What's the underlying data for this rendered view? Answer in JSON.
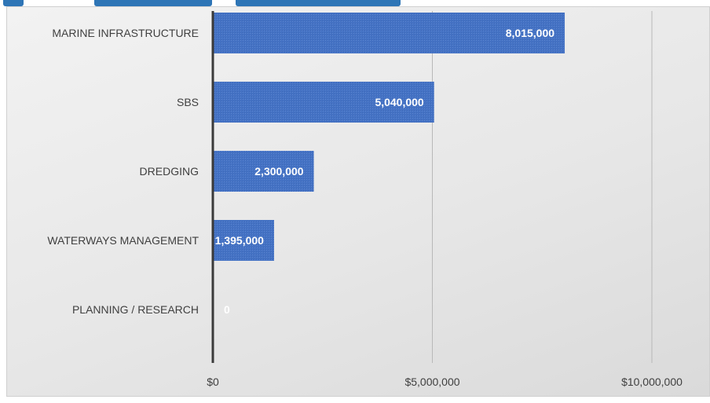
{
  "chart_data": {
    "type": "bar",
    "orientation": "horizontal",
    "categories": [
      "MARINE INFRASTRUCTURE",
      "SBS",
      "DREDGING",
      "WATERWAYS MANAGEMENT",
      "PLANNING / RESEARCH"
    ],
    "values": [
      8015000,
      5040000,
      2300000,
      1395000,
      0
    ],
    "data_labels": [
      "8,015,000",
      "5,040,000",
      "2,300,000",
      "1,395,000",
      "0"
    ],
    "xlim": [
      0,
      10000000
    ],
    "x_ticks": [
      0,
      5000000,
      10000000
    ],
    "x_tick_labels": [
      "$0",
      "$5,000,000",
      "$10,000,000"
    ],
    "gridlines": true,
    "legend": "none",
    "colors": {
      "bar": "#4472c4",
      "bar_label": "#ffffff",
      "category_text": "#404040",
      "tick_text": "#404040",
      "gridline": "#b8b8b8",
      "axis_line": "#3a3a3a",
      "background": "#ececec",
      "heading_fragment": "#2e75b6"
    }
  }
}
